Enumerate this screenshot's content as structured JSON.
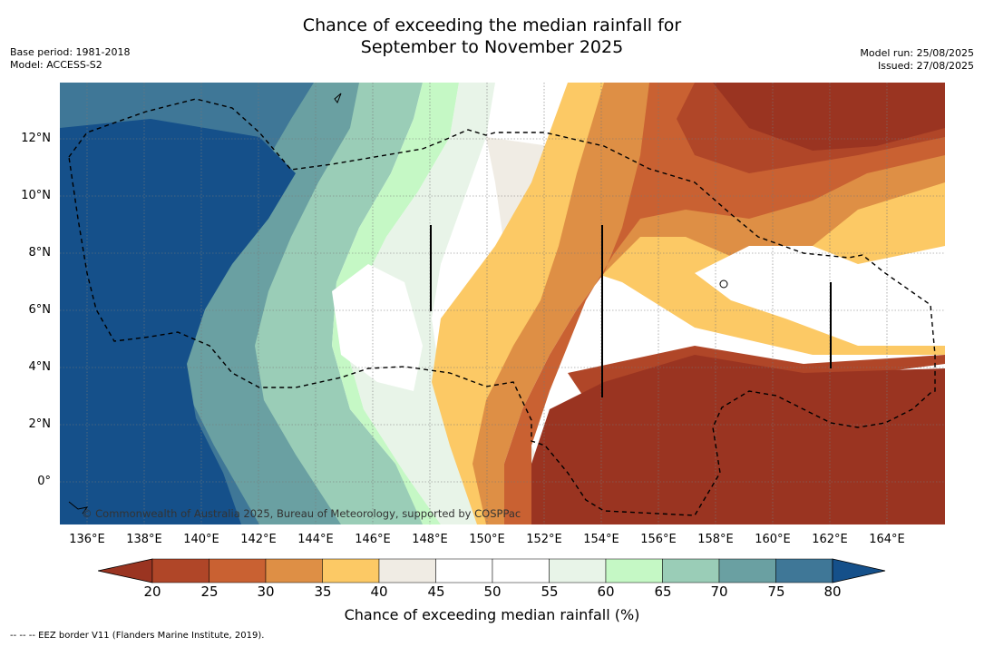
{
  "header": {
    "title_line1": "Chance of exceeding the median rainfall for",
    "title_line2": "September to November 2025",
    "base_period": "Base period: 1981-2018",
    "model": "Model: ACCESS-S2",
    "model_run": "Model run: 25/08/2025",
    "issued": "Issued: 27/08/2025"
  },
  "map": {
    "lat_labels": [
      "12°N",
      "10°N",
      "8°N",
      "6°N",
      "4°N",
      "2°N",
      "0°"
    ],
    "lon_labels": [
      "136°E",
      "138°E",
      "140°E",
      "142°E",
      "144°E",
      "146°E",
      "148°E",
      "150°E",
      "152°E",
      "154°E",
      "156°E",
      "158°E",
      "160°E",
      "162°E",
      "164°E"
    ],
    "copyright": "© Commonwealth of Australia 2025, Bureau of Meteorology, supported by COSPPac",
    "extent": {
      "lon": [
        135,
        166
      ],
      "lat": [
        -1.5,
        14
      ]
    }
  },
  "colorbar": {
    "ticks": [
      "20",
      "25",
      "30",
      "35",
      "40",
      "45",
      "50",
      "55",
      "60",
      "65",
      "70",
      "75",
      "80"
    ],
    "colors": [
      "#9a3421",
      "#b04628",
      "#c96132",
      "#de8f45",
      "#fcc965",
      "#f0ece4",
      "#ffffff",
      "#ffffff",
      "#e8f4e8",
      "#c5f8c5",
      "#9acdb7",
      "#6aa0a2",
      "#3f7797",
      "#15508a"
    ],
    "label": "Chance of exceeding median rainfall (%)"
  },
  "footer": "--  --  -- EEZ border V11 (Flanders Marine Institute, 2019)."
}
